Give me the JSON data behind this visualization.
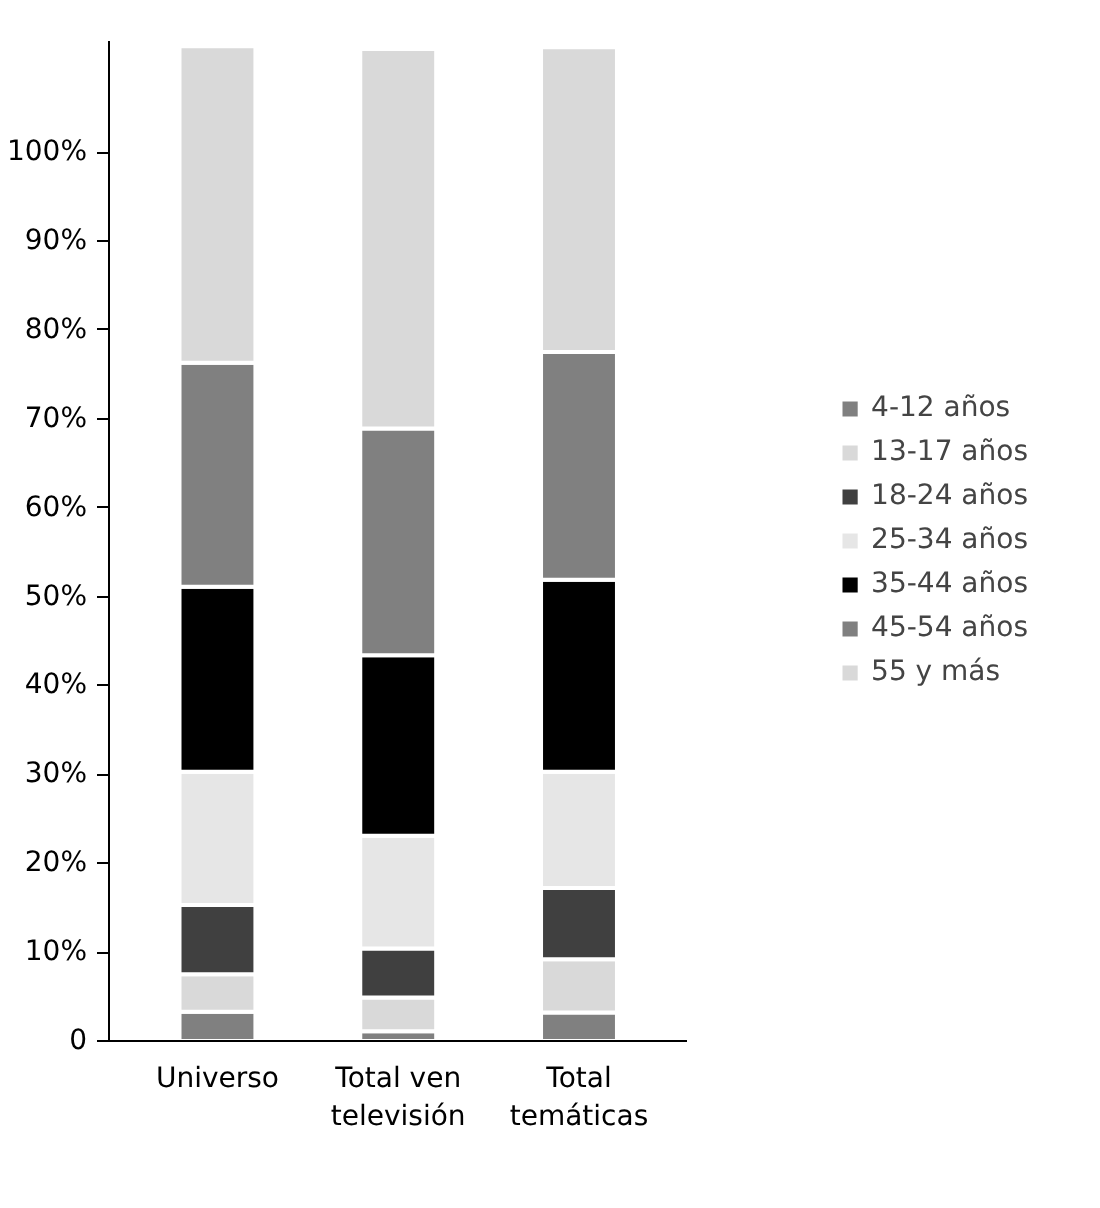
{
  "chart_data": {
    "type": "bar",
    "stacked": true,
    "categories": [
      "Universo",
      "Total ven televisión",
      "Total temáticas"
    ],
    "series": [
      {
        "name": "4-12 años",
        "color": "#808080",
        "values": [
          3.3,
          1.1,
          3.2
        ]
      },
      {
        "name": "13-17 años",
        "color": "#d9d9d9",
        "values": [
          4.2,
          3.8,
          6.0
        ]
      },
      {
        "name": "18-24 años",
        "color": "#404040",
        "values": [
          7.8,
          5.5,
          8.0
        ]
      },
      {
        "name": "25-34 años",
        "color": "#e6e6e6",
        "values": [
          15.0,
          12.7,
          13.1
        ]
      },
      {
        "name": "35-44 años",
        "color": "#000000",
        "values": [
          20.8,
          20.3,
          21.6
        ]
      },
      {
        "name": "45-54 años",
        "color": "#808080",
        "values": [
          25.2,
          25.5,
          25.6
        ]
      },
      {
        "name": "55 y más",
        "color": "#d9d9d9",
        "values": [
          35.6,
          42.7,
          34.3
        ]
      }
    ],
    "ylim": [
      0,
      112.5
    ],
    "yticks": [
      0,
      {
        "value": 10,
        "label": "10%"
      },
      {
        "value": 20,
        "label": "20%"
      },
      {
        "value": 30,
        "label": "30%"
      },
      {
        "value": 40,
        "label": "40%"
      },
      {
        "value": 50,
        "label": "50%"
      },
      {
        "value": 60,
        "label": "60%"
      },
      {
        "value": 70,
        "label": "70%"
      },
      {
        "value": 80,
        "label": "80%"
      },
      {
        "value": 90,
        "label": "90%"
      },
      {
        "value": 100,
        "label": "100%"
      }
    ],
    "grid": false,
    "legend": "right"
  }
}
